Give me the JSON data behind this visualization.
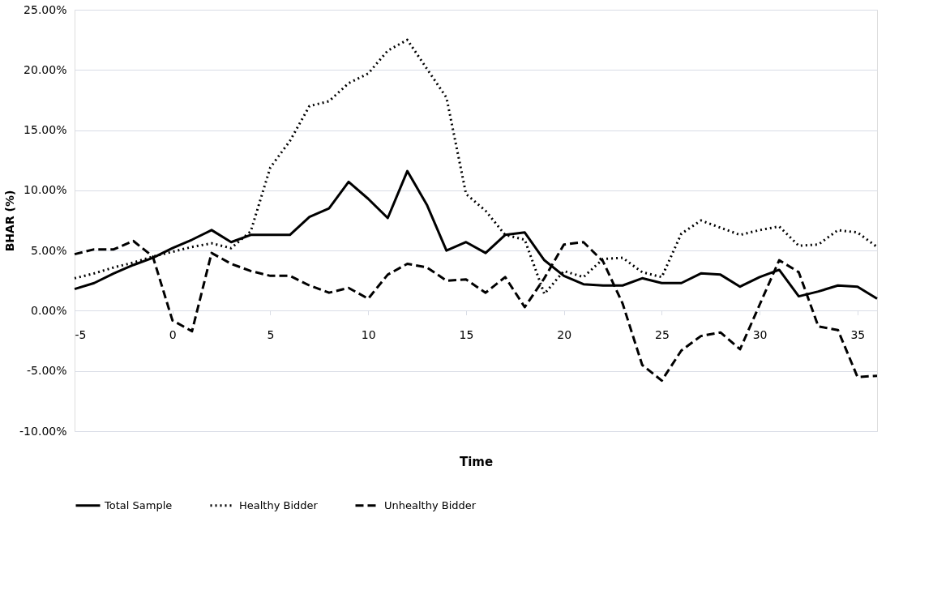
{
  "chart_data": {
    "type": "line",
    "xlabel": "Time",
    "ylabel": "BHAR (%)",
    "x": [
      -5,
      -4,
      -3,
      -2,
      -1,
      0,
      1,
      2,
      3,
      4,
      5,
      6,
      7,
      8,
      9,
      10,
      11,
      12,
      13,
      14,
      15,
      16,
      17,
      18,
      19,
      20,
      21,
      22,
      23,
      24,
      25,
      26,
      27,
      28,
      29,
      30,
      31,
      32,
      33,
      34,
      35,
      36
    ],
    "series": [
      {
        "name": "Total Sample",
        "color": "#000000",
        "line_style": "solid",
        "values": [
          1.8,
          2.3,
          3.1,
          3.8,
          4.4,
          5.2,
          5.9,
          6.7,
          5.7,
          6.3,
          6.3,
          6.3,
          7.8,
          8.5,
          10.7,
          9.3,
          7.7,
          11.6,
          8.8,
          5.0,
          5.7,
          4.8,
          6.3,
          6.5,
          4.2,
          2.9,
          2.2,
          2.1,
          2.1,
          2.7,
          2.3,
          2.3,
          3.1,
          3.0,
          2.0,
          2.8,
          3.4,
          1.2,
          1.6,
          2.1,
          2.0,
          1.0
        ]
      },
      {
        "name": "Healthy Bidder",
        "color": "#000000",
        "line_style": "dotted",
        "values": [
          2.7,
          3.1,
          3.6,
          4.0,
          4.5,
          4.9,
          5.3,
          5.6,
          5.2,
          6.6,
          11.9,
          14.1,
          17.0,
          17.4,
          18.9,
          19.7,
          21.6,
          22.5,
          20.1,
          17.7,
          9.7,
          8.3,
          6.3,
          5.9,
          1.4,
          3.3,
          2.8,
          4.3,
          4.4,
          3.2,
          2.8,
          6.4,
          7.5,
          6.9,
          6.3,
          6.7,
          7.0,
          5.4,
          5.5,
          6.7,
          6.5,
          5.3
        ]
      },
      {
        "name": "Unhealthy Bidder",
        "color": "#000000",
        "line_style": "dashed",
        "values": [
          4.7,
          5.1,
          5.1,
          5.8,
          4.5,
          -0.8,
          -1.7,
          4.8,
          3.9,
          3.3,
          2.9,
          2.9,
          2.1,
          1.5,
          1.9,
          1.0,
          3.0,
          3.9,
          3.6,
          2.5,
          2.6,
          1.5,
          2.8,
          0.3,
          2.7,
          5.5,
          5.7,
          4.1,
          0.6,
          -4.5,
          -5.8,
          -3.3,
          -2.1,
          -1.8,
          -3.2,
          0.5,
          4.2,
          3.2,
          -1.3,
          -1.6,
          -5.5,
          -5.4
        ]
      }
    ],
    "xlim": [
      -5,
      36
    ],
    "xticks": [
      -5,
      0,
      5,
      10,
      15,
      20,
      25,
      30,
      35
    ],
    "ylim": [
      -10,
      25
    ],
    "yticks": [
      {
        "value": -10,
        "label": "-10.00%"
      },
      {
        "value": -5,
        "label": "-5.00%"
      },
      {
        "value": 0,
        "label": "0.00%"
      },
      {
        "value": 5,
        "label": "5.00%"
      },
      {
        "value": 10,
        "label": "10.00%"
      },
      {
        "value": 15,
        "label": "15.00%"
      },
      {
        "value": 20,
        "label": "20.00%"
      },
      {
        "value": 25,
        "label": "25.00%"
      }
    ],
    "grid": "y",
    "legend": "bottom",
    "marker": "none"
  }
}
